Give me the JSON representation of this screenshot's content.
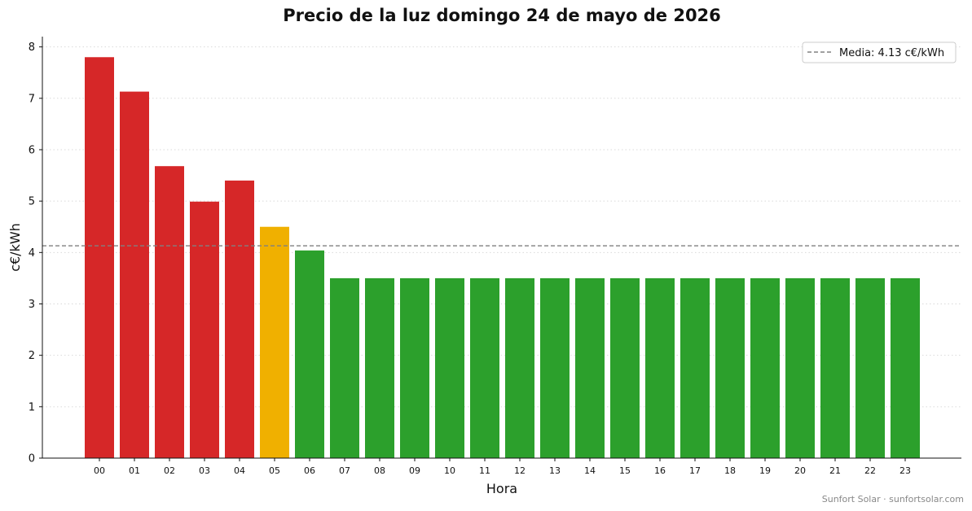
{
  "chart_data": {
    "type": "bar",
    "title": "Precio de la luz domingo 24 de mayo de 2026",
    "xlabel": "Hora",
    "ylabel": "c€/kWh",
    "categories": [
      "00",
      "01",
      "02",
      "03",
      "04",
      "05",
      "06",
      "07",
      "08",
      "09",
      "10",
      "11",
      "12",
      "13",
      "14",
      "15",
      "16",
      "17",
      "18",
      "19",
      "20",
      "21",
      "22",
      "23"
    ],
    "values": [
      7.8,
      7.13,
      5.68,
      4.99,
      5.4,
      4.5,
      4.04,
      3.5,
      3.5,
      3.5,
      3.5,
      3.5,
      3.5,
      3.5,
      3.5,
      3.5,
      3.5,
      3.5,
      3.5,
      3.5,
      3.5,
      3.5,
      3.5,
      3.5
    ],
    "bar_colors": [
      "#d62728",
      "#d62728",
      "#d62728",
      "#d62728",
      "#d62728",
      "#f0b000",
      "#2ca02c",
      "#2ca02c",
      "#2ca02c",
      "#2ca02c",
      "#2ca02c",
      "#2ca02c",
      "#2ca02c",
      "#2ca02c",
      "#2ca02c",
      "#2ca02c",
      "#2ca02c",
      "#2ca02c",
      "#2ca02c",
      "#2ca02c",
      "#2ca02c",
      "#2ca02c",
      "#2ca02c",
      "#2ca02c"
    ],
    "ylim": [
      0,
      8.2
    ],
    "yticks": [
      0,
      1,
      2,
      3,
      4,
      5,
      6,
      7,
      8
    ],
    "grid": "horizontal dotted",
    "mean": 4.13,
    "mean_line_color": "#808080",
    "legend": {
      "placement": "top-right",
      "entries": [
        "Media: 4.13 c€/kWh"
      ]
    }
  },
  "footer": "Sunfort Solar · sunfortsolar.com"
}
